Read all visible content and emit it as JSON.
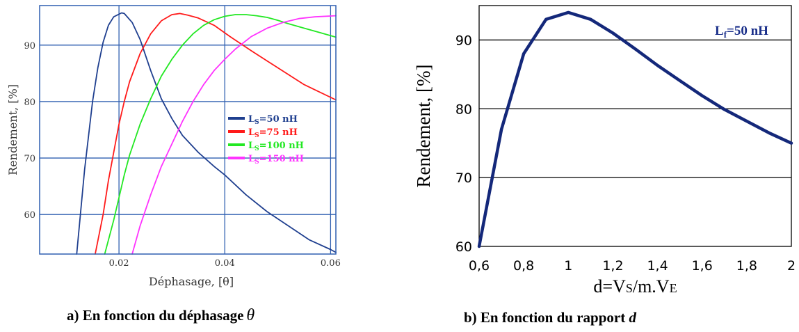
{
  "chart_data": [
    {
      "type": "line",
      "xlabel": "Déphasage, [θ]",
      "ylabel": "Rendement, [%]",
      "xlim": [
        0.005,
        0.061
      ],
      "ylim": [
        53,
        97
      ],
      "x_ticks": [
        0.02,
        0.04,
        0.06
      ],
      "x_tick_labels": [
        "0.02",
        "0.04",
        "0.06"
      ],
      "y_ticks": [
        60,
        70,
        80,
        90
      ],
      "y_tick_labels": [
        "60",
        "70",
        "80",
        "90"
      ],
      "grid": true,
      "legend_position": "center-right",
      "series": [
        {
          "label_main": "L",
          "label_sub": "S",
          "label_rest": "=50 nH",
          "color": "#1f3f8f",
          "x": [
            0.012,
            0.0135,
            0.015,
            0.016,
            0.017,
            0.018,
            0.019,
            0.0205,
            0.021,
            0.0225,
            0.024,
            0.026,
            0.028,
            0.03,
            0.032,
            0.035,
            0.038,
            0.04,
            0.044,
            0.048,
            0.052,
            0.056,
            0.06,
            0.061
          ],
          "y": [
            53,
            68,
            80,
            86,
            90.5,
            93.5,
            95,
            95.7,
            95.6,
            94,
            91,
            85.5,
            80.5,
            77,
            74,
            71,
            68.5,
            67,
            63.5,
            60.5,
            58,
            55.5,
            53.8,
            53.3
          ]
        },
        {
          "label_main": "L",
          "label_sub": "S",
          "label_rest": "=75 nH",
          "color": "#ff1a1a",
          "x": [
            0.0155,
            0.017,
            0.018,
            0.019,
            0.02,
            0.021,
            0.022,
            0.024,
            0.026,
            0.028,
            0.03,
            0.0315,
            0.033,
            0.035,
            0.038,
            0.041,
            0.045,
            0.05,
            0.055,
            0.061
          ],
          "y": [
            53,
            60,
            66,
            71,
            76,
            80,
            83.5,
            88.5,
            92,
            94.3,
            95.4,
            95.6,
            95.3,
            94.8,
            93.5,
            91.5,
            89,
            86,
            83,
            80.3
          ]
        },
        {
          "label_main": "L",
          "label_sub": "S",
          "label_rest": "=100 nH",
          "color": "#22e822",
          "x": [
            0.0173,
            0.019,
            0.02,
            0.021,
            0.022,
            0.024,
            0.026,
            0.028,
            0.03,
            0.032,
            0.034,
            0.036,
            0.038,
            0.04,
            0.042,
            0.044,
            0.046,
            0.048,
            0.05,
            0.052,
            0.055,
            0.058,
            0.061
          ],
          "y": [
            53,
            59,
            63,
            67,
            70.5,
            76,
            80.5,
            84.5,
            87.5,
            90,
            92,
            93.5,
            94.5,
            95.1,
            95.4,
            95.4,
            95.2,
            94.9,
            94.4,
            93.8,
            93,
            92.2,
            91.4
          ]
        },
        {
          "label_main": "L",
          "label_sub": "S",
          "label_rest": "=150 nH",
          "color": "#ff33ff",
          "x": [
            0.0225,
            0.024,
            0.026,
            0.028,
            0.03,
            0.032,
            0.034,
            0.036,
            0.038,
            0.04,
            0.042,
            0.045,
            0.048,
            0.051,
            0.054,
            0.057,
            0.061
          ],
          "y": [
            53,
            58,
            63.5,
            68.5,
            72.5,
            76.5,
            80,
            83,
            85.5,
            87.5,
            89.3,
            91.5,
            93,
            94,
            94.7,
            95,
            95.2
          ]
        }
      ]
    },
    {
      "type": "line",
      "xlabel_parts": [
        "d=V",
        "S",
        "/m.V",
        "E"
      ],
      "ylabel": "Rendement,  [%]",
      "xlim": [
        0.6,
        2
      ],
      "ylim": [
        60,
        95
      ],
      "x_ticks": [
        0.6,
        0.8,
        1,
        1.2,
        1.4,
        1.6,
        1.8,
        2
      ],
      "x_tick_labels": [
        "0,6",
        "0,8",
        "1",
        "1,2",
        "1,4",
        "1,6",
        "1,8",
        "2"
      ],
      "y_ticks": [
        60,
        70,
        80,
        90
      ],
      "y_tick_labels": [
        "60",
        "70",
        "80",
        "90"
      ],
      "grid": "horizontal",
      "annotation_parts": [
        "L",
        "f",
        "=50 nH"
      ],
      "series": [
        {
          "color": "#14287a",
          "x": [
            0.6,
            0.7,
            0.8,
            0.9,
            1.0,
            1.1,
            1.2,
            1.3,
            1.4,
            1.5,
            1.6,
            1.7,
            1.8,
            1.9,
            2.0
          ],
          "y": [
            60,
            77,
            88,
            93,
            94,
            93,
            91,
            88.7,
            86.3,
            84.1,
            81.9,
            79.9,
            78.2,
            76.5,
            75
          ]
        }
      ]
    }
  ],
  "captions": {
    "a_text": "a)    En fonction du déphasage",
    "a_symbol": "θ",
    "b_text": "b) En fonction du rapport",
    "b_symbol": "d"
  }
}
